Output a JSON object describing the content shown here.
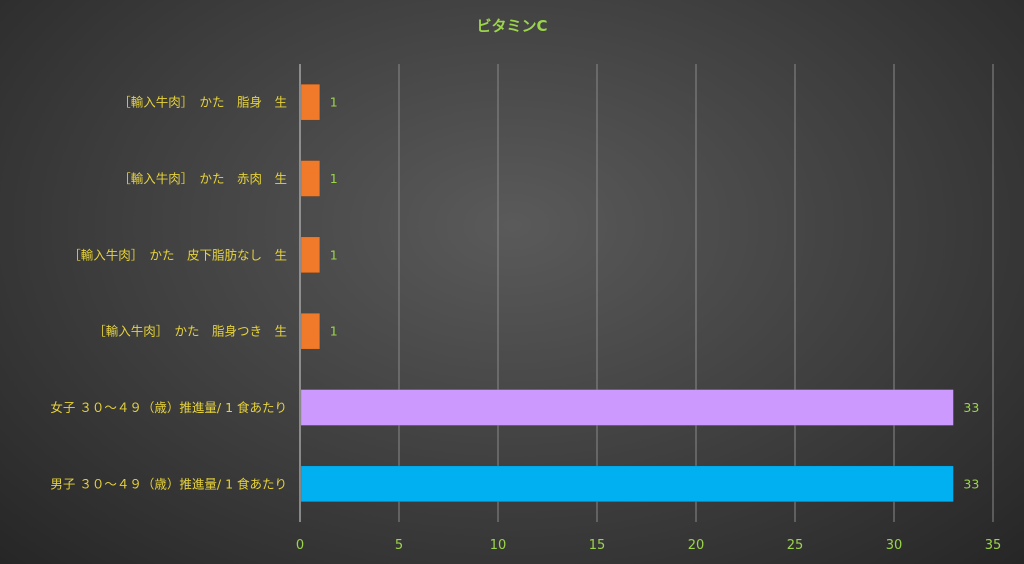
{
  "chart_data": {
    "type": "bar",
    "orientation": "horizontal",
    "title": "ビタミンC",
    "categories": [
      "［輸入牛肉］　かた　脂身　生",
      "［輸入牛肉］　かた　赤肉　生",
      "［輸入牛肉］　かた　皮下脂肪なし　生",
      "［輸入牛肉］　かた　脂身つき　生",
      "女子 ３０～４９（歳）推進量/ 1 食あたり",
      "男子 ３０～４９（歳）推進量/ 1 食あたり"
    ],
    "values": [
      1,
      1,
      1,
      1,
      33,
      33
    ],
    "bar_colors": [
      "#f07a2a",
      "#f07a2a",
      "#f07a2a",
      "#f07a2a",
      "#cc99ff",
      "#00b0f0"
    ],
    "xlim": [
      0,
      35
    ],
    "xticks": [
      0,
      5,
      10,
      15,
      20,
      25,
      30,
      35
    ],
    "grid": true,
    "legend": "none",
    "colors": {
      "title": "#9bd54a",
      "category_text": "#e6d23a",
      "tick_text": "#9bd54a"
    }
  }
}
